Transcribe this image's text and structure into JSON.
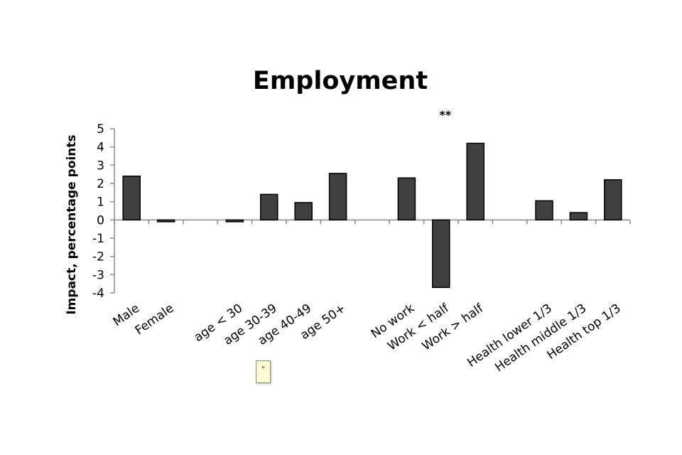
{
  "chart_data": {
    "type": "bar",
    "title": "Employment",
    "xlabel": "",
    "ylabel": "Impact, percentage points",
    "ylim": [
      -4,
      5
    ],
    "yticks": [
      5,
      4,
      3,
      2,
      1,
      0,
      -1,
      -2,
      -3,
      -4
    ],
    "categories": [
      "Male",
      "Female",
      "",
      "age < 30",
      "age 30-39",
      "age 40-49",
      "age 50+",
      "",
      "No work",
      "Work < half",
      "Work > half",
      "",
      "Health lower 1/3",
      "Health middle 1/3",
      "Health top 1/3"
    ],
    "values": [
      2.4,
      -0.1,
      null,
      -0.1,
      1.4,
      0.95,
      2.55,
      null,
      2.3,
      -3.7,
      4.2,
      null,
      1.05,
      0.4,
      2.2
    ],
    "annotations": [
      {
        "category": "Work < half",
        "text": "**"
      }
    ],
    "bar_color": "#404040",
    "grid": false,
    "legend": "none"
  },
  "note_icon": "comment-note-icon"
}
